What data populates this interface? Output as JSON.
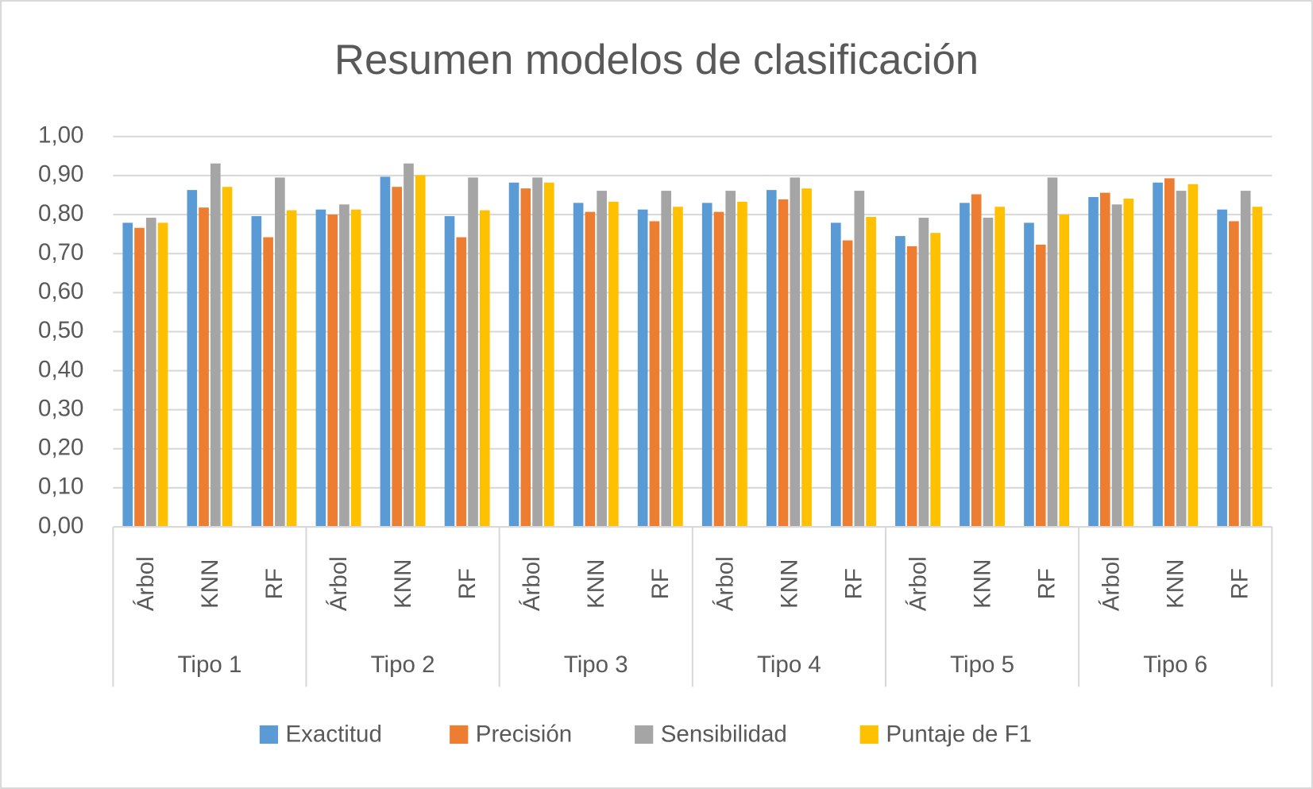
{
  "chart_data": {
    "type": "bar",
    "title": "Resumen modelos de clasificación",
    "categories": [
      "Árbol",
      "KNN",
      "RF",
      "Árbol",
      "KNN",
      "RF",
      "Árbol",
      "KNN",
      "RF",
      "Árbol",
      "KNN",
      "RF",
      "Árbol",
      "KNN",
      "RF",
      "Árbol",
      "KNN",
      "RF"
    ],
    "groups": [
      "Tipo 1",
      "Tipo 2",
      "Tipo 3",
      "Tipo 4",
      "Tipo 5",
      "Tipo 6"
    ],
    "series": [
      {
        "name": "Exactitud",
        "color": "#5b9bd5",
        "values": [
          0.779,
          0.863,
          0.796,
          0.813,
          0.897,
          0.796,
          0.882,
          0.83,
          0.813,
          0.83,
          0.863,
          0.779,
          0.745,
          0.83,
          0.779,
          0.845,
          0.882,
          0.813
        ]
      },
      {
        "name": "Precisión",
        "color": "#ed7d31",
        "values": [
          0.766,
          0.818,
          0.742,
          0.8,
          0.871,
          0.742,
          0.867,
          0.807,
          0.783,
          0.807,
          0.839,
          0.734,
          0.719,
          0.852,
          0.723,
          0.856,
          0.893,
          0.783
        ]
      },
      {
        "name": "Sensibilidad",
        "color": "#a5a5a5",
        "values": [
          0.792,
          0.931,
          0.895,
          0.826,
          0.931,
          0.895,
          0.895,
          0.861,
          0.861,
          0.861,
          0.895,
          0.861,
          0.792,
          0.792,
          0.895,
          0.826,
          0.861,
          0.861
        ]
      },
      {
        "name": "Puntaje de F1",
        "color": "#ffc000",
        "values": [
          0.779,
          0.871,
          0.811,
          0.813,
          0.901,
          0.811,
          0.882,
          0.833,
          0.82,
          0.833,
          0.867,
          0.794,
          0.753,
          0.82,
          0.8,
          0.841,
          0.878,
          0.82
        ]
      }
    ],
    "ylim": [
      0,
      1
    ],
    "yticks": [
      {
        "value": 0,
        "label": "0,00"
      },
      {
        "value": 0.1,
        "label": "0,10"
      },
      {
        "value": 0.2,
        "label": "0,20"
      },
      {
        "value": 0.3,
        "label": "0,30"
      },
      {
        "value": 0.4,
        "label": "0,40"
      },
      {
        "value": 0.5,
        "label": "0,50"
      },
      {
        "value": 0.6,
        "label": "0,60"
      },
      {
        "value": 0.7,
        "label": "0,70"
      },
      {
        "value": 0.8,
        "label": "0,80"
      },
      {
        "value": 0.9,
        "label": "0,90"
      },
      {
        "value": 1,
        "label": "1,00"
      }
    ],
    "grid": true,
    "legend": "bottom"
  }
}
